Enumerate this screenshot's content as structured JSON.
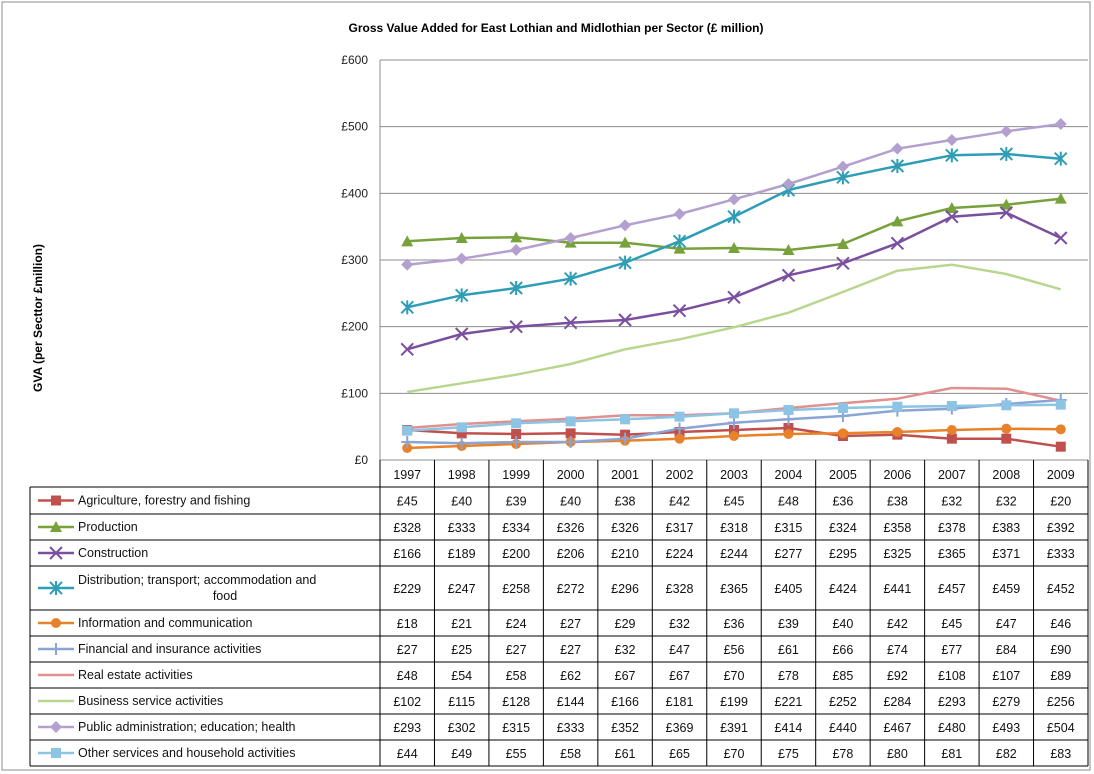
{
  "chart_data": {
    "type": "line",
    "title": "Gross Value Added for East Lothian and Midlothian per Sector (£ million)",
    "ylabel": "GVA (per Secttor £million)",
    "xlabel": "",
    "ylim": [
      0,
      600
    ],
    "y_ticks": [
      "£0",
      "£100",
      "£200",
      "£300",
      "£400",
      "£500",
      "£600"
    ],
    "y_tick_values": [
      0,
      100,
      200,
      300,
      400,
      500,
      600
    ],
    "grid": true,
    "legend": "data-table-below",
    "categories": [
      "1997",
      "1998",
      "1999",
      "2000",
      "2001",
      "2002",
      "2003",
      "2004",
      "2005",
      "2006",
      "2007",
      "2008",
      "2009"
    ],
    "series": [
      {
        "name": "Agriculture, forestry and fishing",
        "color": "#c0504d",
        "marker": "square",
        "values": [
          45,
          40,
          39,
          40,
          38,
          42,
          45,
          48,
          36,
          38,
          32,
          32,
          20
        ],
        "labels": [
          "£45",
          "£40",
          "£39",
          "£40",
          "£38",
          "£42",
          "£45",
          "£48",
          "£36",
          "£38",
          "£32",
          "£32",
          "£20"
        ]
      },
      {
        "name": "Production",
        "color": "#77a23b",
        "marker": "triangle",
        "values": [
          328,
          333,
          334,
          326,
          326,
          317,
          318,
          315,
          324,
          358,
          378,
          383,
          392
        ],
        "labels": [
          "£328",
          "£333",
          "£334",
          "£326",
          "£326",
          "£317",
          "£318",
          "£315",
          "£324",
          "£358",
          "£378",
          "£383",
          "£392"
        ]
      },
      {
        "name": "Construction",
        "color": "#7a4fa0",
        "marker": "x",
        "values": [
          166,
          189,
          200,
          206,
          210,
          224,
          244,
          277,
          295,
          325,
          365,
          371,
          333
        ],
        "labels": [
          "£166",
          "£189",
          "£200",
          "£206",
          "£210",
          "£224",
          "£244",
          "£277",
          "£295",
          "£325",
          "£365",
          "£371",
          "£333"
        ]
      },
      {
        "name": "Distribution; transport; accommodation and food",
        "color": "#2f9db5",
        "marker": "asterisk",
        "values": [
          229,
          247,
          258,
          272,
          296,
          328,
          365,
          405,
          424,
          441,
          457,
          459,
          452
        ],
        "labels": [
          "£229",
          "£247",
          "£258",
          "£272",
          "£296",
          "£328",
          "£365",
          "£405",
          "£424",
          "£441",
          "£457",
          "£459",
          "£452"
        ]
      },
      {
        "name": "Information and communication",
        "color": "#e8822a",
        "marker": "circle",
        "values": [
          18,
          21,
          24,
          27,
          29,
          32,
          36,
          39,
          40,
          42,
          45,
          47,
          46
        ],
        "labels": [
          "£18",
          "£21",
          "£24",
          "£27",
          "£29",
          "£32",
          "£36",
          "£39",
          "£40",
          "£42",
          "£45",
          "£47",
          "£46"
        ]
      },
      {
        "name": "Financial and insurance activities",
        "color": "#8aa4d6",
        "marker": "plus",
        "values": [
          27,
          25,
          27,
          27,
          32,
          47,
          56,
          61,
          66,
          74,
          77,
          84,
          90
        ],
        "labels": [
          "£27",
          "£25",
          "£27",
          "£27",
          "£32",
          "£47",
          "£56",
          "£61",
          "£66",
          "£74",
          "£77",
          "£84",
          "£90"
        ]
      },
      {
        "name": "Real estate activities",
        "color": "#e0908e",
        "marker": "none",
        "values": [
          48,
          54,
          58,
          62,
          67,
          67,
          70,
          78,
          85,
          92,
          108,
          107,
          89
        ],
        "labels": [
          "£48",
          "£54",
          "£58",
          "£62",
          "£67",
          "£67",
          "£70",
          "£78",
          "£85",
          "£92",
          "£108",
          "£107",
          "£89"
        ]
      },
      {
        "name": "Business service activities",
        "color": "#b9d68f",
        "marker": "none",
        "values": [
          102,
          115,
          128,
          144,
          166,
          181,
          199,
          221,
          252,
          284,
          293,
          279,
          256
        ],
        "labels": [
          "£102",
          "£115",
          "£128",
          "£144",
          "£166",
          "£181",
          "£199",
          "£221",
          "£252",
          "£284",
          "£293",
          "£279",
          "£256"
        ]
      },
      {
        "name": "Public administration; education; health",
        "color": "#b4a0cf",
        "marker": "diamond",
        "values": [
          293,
          302,
          315,
          333,
          352,
          369,
          391,
          414,
          440,
          467,
          480,
          493,
          504
        ],
        "labels": [
          "£293",
          "£302",
          "£315",
          "£333",
          "£352",
          "£369",
          "£391",
          "£414",
          "£440",
          "£467",
          "£480",
          "£493",
          "£504"
        ]
      },
      {
        "name": "Other services and household activities",
        "color": "#8dc3e3",
        "marker": "square",
        "values": [
          44,
          49,
          55,
          58,
          61,
          65,
          70,
          75,
          78,
          80,
          81,
          82,
          83
        ],
        "labels": [
          "£44",
          "£49",
          "£55",
          "£58",
          "£61",
          "£65",
          "£70",
          "£75",
          "£78",
          "£80",
          "£81",
          "£82",
          "£83"
        ]
      }
    ]
  }
}
